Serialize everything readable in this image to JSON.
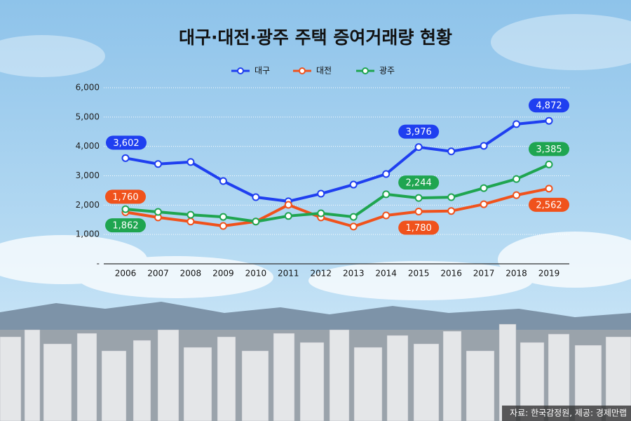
{
  "chart_data": {
    "type": "line",
    "title": "대구·대전·광주 주택 증여거래량 현황",
    "categories": [
      "2006",
      "2007",
      "2008",
      "2009",
      "2010",
      "2011",
      "2012",
      "2013",
      "2014",
      "2015",
      "2016",
      "2017",
      "2018",
      "2019"
    ],
    "series": [
      {
        "name": "대구",
        "color": "#1f3ff0",
        "values": [
          3602,
          3400,
          3470,
          2820,
          2270,
          2130,
          2390,
          2700,
          3060,
          3976,
          3830,
          4020,
          4760,
          4872
        ],
        "value_labels": [
          "3,602",
          null,
          null,
          null,
          null,
          null,
          null,
          null,
          null,
          "3,976",
          null,
          null,
          null,
          "4,872"
        ]
      },
      {
        "name": "대전",
        "color": "#f0521c",
        "values": [
          1760,
          1580,
          1440,
          1290,
          1440,
          2010,
          1580,
          1270,
          1650,
          1780,
          1800,
          2030,
          2340,
          2562
        ],
        "value_labels": [
          "1,760",
          null,
          null,
          null,
          null,
          null,
          null,
          null,
          null,
          "1,780",
          null,
          null,
          null,
          "2,562"
        ]
      },
      {
        "name": "광주",
        "color": "#1fa550",
        "values": [
          1862,
          1770,
          1670,
          1600,
          1440,
          1630,
          1720,
          1600,
          2370,
          2244,
          2270,
          2580,
          2890,
          3385
        ],
        "value_labels": [
          "1,862",
          null,
          null,
          null,
          null,
          null,
          null,
          null,
          null,
          "2,244",
          null,
          null,
          null,
          "3,385"
        ]
      }
    ],
    "ylim": [
      0,
      6000
    ],
    "yticks": [
      {
        "value": 0,
        "label": "-"
      },
      {
        "value": 1000,
        "label": "1,000"
      },
      {
        "value": 2000,
        "label": "2,000"
      },
      {
        "value": 3000,
        "label": "3,000"
      },
      {
        "value": 4000,
        "label": "4,000"
      },
      {
        "value": 5000,
        "label": "5,000"
      },
      {
        "value": 6000,
        "label": "6,000"
      }
    ],
    "grid": true,
    "legend": "top",
    "source": "자료: 한국감정원, 제공: 경제만랩"
  }
}
